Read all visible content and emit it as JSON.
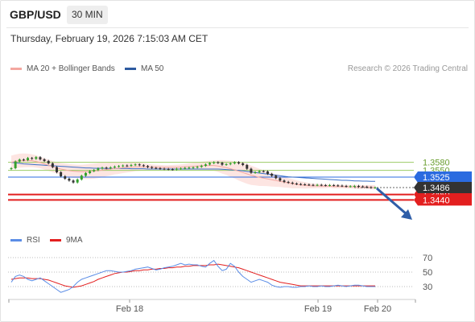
{
  "header": {
    "symbol": "GBP/USD",
    "timeframe": "30 MIN",
    "datetime": "Thursday, February 19, 2026 7:15:03 AM CET"
  },
  "legend": {
    "bollinger_label": "MA 20 + Bollinger Bands",
    "ma50_label": "MA 50",
    "credit": "Research © 2026 Trading Central",
    "rsi_label": "RSI",
    "rsi_ma_label": "9MA"
  },
  "colors": {
    "bollinger": "#f4a7a0",
    "band_fill": "#fde1dd",
    "ma50": "#3a6fc7",
    "resistance": "#9ccc65",
    "pivot": "#2b6be0",
    "support": "#e31f1f",
    "price_tag": "#333333",
    "rsi": "#5b8de6",
    "rsi_ma": "#e31f1f",
    "arrow": "#2f5ea8"
  },
  "chart_data": [
    {
      "type": "candlestick",
      "title": "GBP/USD",
      "x_ticks": [
        "Feb 18",
        "Feb 19",
        "Feb 20"
      ],
      "ylim": [
        1.3425,
        1.3625
      ],
      "current_price": 1.3486,
      "levels": [
        {
          "value": 1.358,
          "label": "1.3580",
          "kind": "resistance"
        },
        {
          "value": 1.355,
          "label": "1.3550",
          "kind": "resistance"
        },
        {
          "value": 1.3525,
          "label": "1.3525",
          "kind": "pivot"
        },
        {
          "value": 1.346,
          "label": "1.3460",
          "kind": "support"
        },
        {
          "value": 1.344,
          "label": "1.3440",
          "kind": "support"
        }
      ],
      "current_label": "1.3486",
      "closes": [
        1.3558,
        1.3583,
        1.359,
        1.3588,
        1.3596,
        1.3593,
        1.3599,
        1.3591,
        1.3585,
        1.3576,
        1.3562,
        1.3543,
        1.3528,
        1.3519,
        1.3512,
        1.3505,
        1.3516,
        1.353,
        1.354,
        1.3547,
        1.3551,
        1.3557,
        1.356,
        1.3558,
        1.3561,
        1.3564,
        1.3566,
        1.3568,
        1.3567,
        1.357,
        1.3572,
        1.3569,
        1.3566,
        1.3562,
        1.3559,
        1.3558,
        1.3556,
        1.3555,
        1.3554,
        1.3553,
        1.3556,
        1.3557,
        1.3559,
        1.356,
        1.3561,
        1.3563,
        1.3567,
        1.3572,
        1.3577,
        1.358,
        1.3578,
        1.3571,
        1.3573,
        1.3576,
        1.358,
        1.3576,
        1.357,
        1.3556,
        1.3541,
        1.3543,
        1.3547,
        1.3546,
        1.3537,
        1.353,
        1.3521,
        1.3512,
        1.3507,
        1.3504,
        1.3501,
        1.3499,
        1.3498,
        1.3497,
        1.3496,
        1.3495,
        1.3496,
        1.3495,
        1.3494,
        1.3495,
        1.3494,
        1.3493,
        1.3492,
        1.349,
        1.3491,
        1.3492,
        1.349,
        1.3489,
        1.3487,
        1.3486,
        1.3486
      ],
      "ma20": [
        1.358,
        1.3583,
        1.3586,
        1.3587,
        1.3587,
        1.3586,
        1.3583,
        1.3579,
        1.3574,
        1.3569,
        1.3564,
        1.3559,
        1.3555,
        1.3552,
        1.3549,
        1.3547,
        1.3546,
        1.3545,
        1.3545,
        1.3546,
        1.3547,
        1.3549,
        1.3551,
        1.3553,
        1.3555,
        1.3557,
        1.3558,
        1.356,
        1.3561,
        1.3562,
        1.3563,
        1.3563,
        1.3563,
        1.3563,
        1.3562,
        1.3562,
        1.3561,
        1.3561,
        1.3561,
        1.3561,
        1.3561,
        1.3562,
        1.3563,
        1.3564,
        1.3565,
        1.3566,
        1.3567,
        1.3568,
        1.3568,
        1.3568,
        1.3566,
        1.3563,
        1.356,
        1.3556,
        1.3552,
        1.3547,
        1.3542,
        1.3537,
        1.3532,
        1.3528,
        1.3524,
        1.3521,
        1.3518,
        1.3515,
        1.3512,
        1.3509,
        1.3506,
        1.3503,
        1.35,
        1.3498,
        1.3496,
        1.3494,
        1.3493,
        1.3492,
        1.3492,
        1.3491,
        1.3491,
        1.3491,
        1.349,
        1.349,
        1.349,
        1.3489,
        1.3489,
        1.3489,
        1.3488,
        1.3488,
        1.3488,
        1.3487,
        1.3487
      ],
      "bb_upper": [
        1.3605,
        1.3609,
        1.3612,
        1.3613,
        1.3612,
        1.361,
        1.3606,
        1.36,
        1.3595,
        1.359,
        1.3585,
        1.358,
        1.3577,
        1.3575,
        1.3573,
        1.3572,
        1.3571,
        1.3571,
        1.3572,
        1.3574,
        1.3575,
        1.3577,
        1.3578,
        1.3578,
        1.3579,
        1.3579,
        1.3579,
        1.358,
        1.358,
        1.358,
        1.3579,
        1.3578,
        1.3576,
        1.3574,
        1.3572,
        1.3571,
        1.357,
        1.3569,
        1.3569,
        1.357,
        1.3571,
        1.3572,
        1.3574,
        1.3576,
        1.3578,
        1.358,
        1.3582,
        1.3584,
        1.3586,
        1.3587,
        1.3588,
        1.3588,
        1.3587,
        1.3586,
        1.3584,
        1.3582,
        1.3578,
        1.3574,
        1.3568,
        1.3562,
        1.3556,
        1.355,
        1.3545,
        1.354,
        1.3535,
        1.353,
        1.3526,
        1.3521,
        1.3517,
        1.3513,
        1.3509,
        1.3506,
        1.3503,
        1.3501,
        1.35,
        1.3499,
        1.3498,
        1.3497,
        1.3497,
        1.3497,
        1.3496,
        1.3496,
        1.3496,
        1.3496,
        1.3496,
        1.3495,
        1.3495,
        1.3495,
        1.3495
      ],
      "bb_lower": [
        1.3555,
        1.3557,
        1.356,
        1.3561,
        1.3562,
        1.3562,
        1.356,
        1.3558,
        1.3553,
        1.3548,
        1.3543,
        1.3538,
        1.3533,
        1.3529,
        1.3525,
        1.3522,
        1.3521,
        1.3519,
        1.3518,
        1.3518,
        1.3519,
        1.3521,
        1.3524,
        1.3528,
        1.3531,
        1.3535,
        1.3537,
        1.354,
        1.3542,
        1.3544,
        1.3547,
        1.3548,
        1.355,
        1.3552,
        1.3552,
        1.3553,
        1.3552,
        1.3553,
        1.3553,
        1.3552,
        1.3551,
        1.3552,
        1.3552,
        1.3552,
        1.3552,
        1.3552,
        1.3552,
        1.3552,
        1.355,
        1.3549,
        1.3544,
        1.3538,
        1.3533,
        1.3526,
        1.352,
        1.3512,
        1.3506,
        1.35,
        1.3496,
        1.3494,
        1.3492,
        1.3492,
        1.3491,
        1.349,
        1.3489,
        1.3488,
        1.3486,
        1.3485,
        1.3483,
        1.3483,
        1.3483,
        1.3482,
        1.3483,
        1.3483,
        1.3484,
        1.3483,
        1.3484,
        1.3485,
        1.3483,
        1.3483,
        1.3484,
        1.3482,
        1.3482,
        1.3482,
        1.348,
        1.3481,
        1.3481,
        1.3479,
        1.3479
      ],
      "ma50": [
        1.358,
        1.3578,
        1.3576,
        1.3574,
        1.3573,
        1.3572,
        1.3571,
        1.357,
        1.3569,
        1.3568,
        1.3567,
        1.3566,
        1.3565,
        1.3564,
        1.3563,
        1.3562,
        1.3561,
        1.356,
        1.3559,
        1.3559,
        1.3558,
        1.3558,
        1.3558,
        1.3557,
        1.3557,
        1.3557,
        1.3557,
        1.3557,
        1.3557,
        1.3556,
        1.3556,
        1.3556,
        1.3556,
        1.3555,
        1.3555,
        1.3555,
        1.3555,
        1.3555,
        1.3555,
        1.3555,
        1.3555,
        1.3555,
        1.3555,
        1.3555,
        1.3555,
        1.3555,
        1.3555,
        1.3555,
        1.3555,
        1.3555,
        1.3555,
        1.3554,
        1.3553,
        1.3552,
        1.3551,
        1.355,
        1.3548,
        1.3546,
        1.3544,
        1.3542,
        1.354,
        1.3538,
        1.3536,
        1.3534,
        1.3532,
        1.353,
        1.3528,
        1.3526,
        1.3525,
        1.3524,
        1.3523,
        1.3522,
        1.3521,
        1.352,
        1.3519,
        1.3518,
        1.3517,
        1.3516,
        1.3515,
        1.3514,
        1.3513,
        1.3513,
        1.3512,
        1.3511,
        1.3511,
        1.351,
        1.351,
        1.3509,
        1.3509
      ]
    },
    {
      "type": "line",
      "title": "RSI",
      "ylim": [
        20,
        80
      ],
      "y_ticks": [
        70,
        50,
        30
      ],
      "series": [
        {
          "name": "RSI",
          "values": [
            36,
            44,
            46,
            44,
            40,
            38,
            40,
            42,
            38,
            34,
            30,
            26,
            22,
            24,
            26,
            30,
            36,
            40,
            42,
            44,
            46,
            48,
            50,
            52,
            52,
            51,
            50,
            50,
            51,
            52,
            54,
            55,
            56,
            57,
            55,
            53,
            54,
            56,
            57,
            58,
            60,
            62,
            60,
            61,
            60,
            60,
            58,
            57,
            62,
            66,
            58,
            52,
            54,
            62,
            58,
            50,
            44,
            40,
            36,
            38,
            40,
            38,
            36,
            32,
            30,
            29,
            30,
            30,
            29,
            29,
            30,
            30,
            31,
            30,
            30,
            31,
            30,
            30,
            31,
            32,
            31,
            30,
            31,
            32,
            32,
            31,
            30,
            30,
            30
          ]
        },
        {
          "name": "9MA",
          "values": [
            40,
            41,
            42,
            42,
            42,
            41,
            41,
            41,
            40,
            39,
            37,
            35,
            33,
            31,
            30,
            29,
            30,
            31,
            33,
            35,
            37,
            40,
            42,
            44,
            46,
            48,
            49,
            50,
            50,
            51,
            52,
            52,
            53,
            53,
            54,
            54,
            55,
            55,
            56,
            56,
            57,
            57,
            58,
            58,
            59,
            59,
            59,
            59,
            60,
            60,
            61,
            60,
            59,
            58,
            57,
            56,
            54,
            52,
            50,
            48,
            46,
            44,
            42,
            40,
            38,
            36,
            35,
            34,
            33,
            32,
            31,
            31,
            31,
            31,
            31,
            31,
            31,
            31,
            31,
            31,
            31,
            31,
            31,
            31,
            31,
            31,
            31,
            31,
            31
          ]
        }
      ]
    }
  ]
}
